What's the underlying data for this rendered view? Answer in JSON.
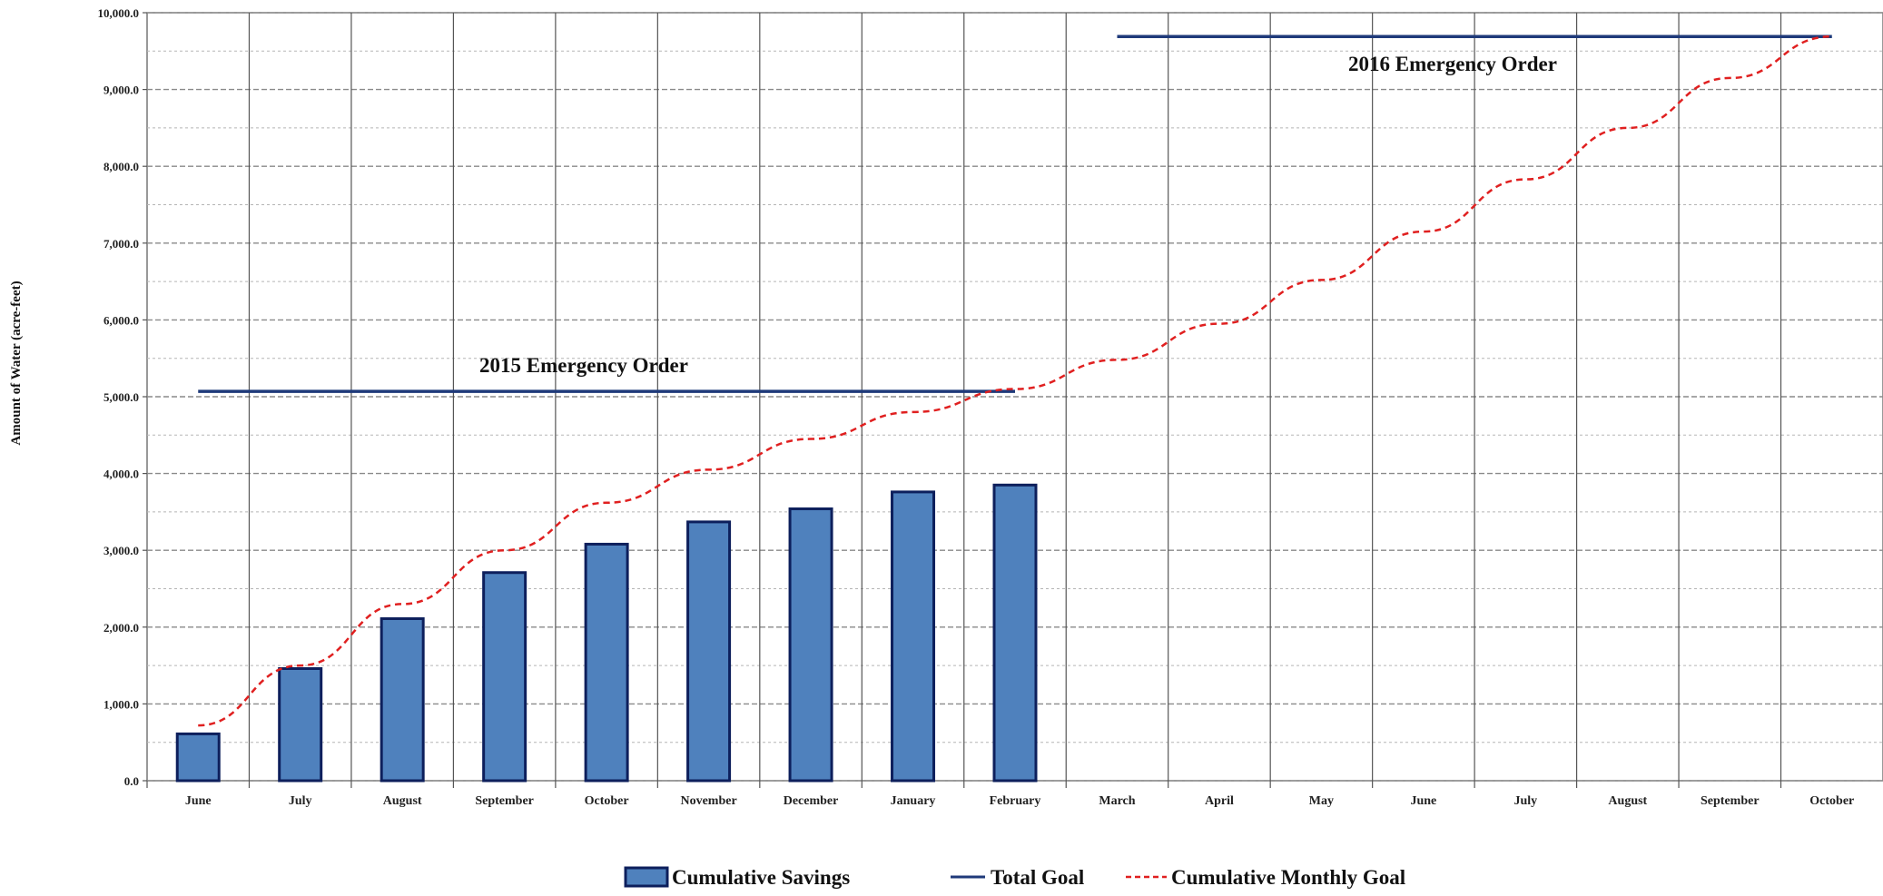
{
  "chart_data": {
    "type": "bar",
    "ylabel": "Amount of Water  (acre-feet)",
    "xlabel": "",
    "ylim": [
      0,
      10000
    ],
    "grid": true,
    "legend_position": "bottom",
    "y_tick_labels": [
      "0.0",
      "1,000.0",
      "2,000.0",
      "3,000.0",
      "4,000.0",
      "5,000.0",
      "6,000.0",
      "7,000.0",
      "8,000.0",
      "9,000.0",
      "10,000.0"
    ],
    "categories": [
      "June",
      "July",
      "August",
      "September",
      "October",
      "November",
      "December",
      "January",
      "February",
      "March",
      "April",
      "May",
      "June",
      "July",
      "August",
      "September",
      "October"
    ],
    "series": [
      {
        "name": "Cumulative Savings",
        "type": "bar",
        "color": "#4f81bd",
        "values": [
          610,
          1460,
          2110,
          2710,
          3080,
          3370,
          3540,
          3760,
          3850,
          null,
          null,
          null,
          null,
          null,
          null,
          null,
          null
        ]
      },
      {
        "name": "Total Goal",
        "type": "segments",
        "color": "#1f3a7a",
        "segments": [
          {
            "from": 0,
            "to": 8,
            "value": 5070
          },
          {
            "from": 9,
            "to": 16,
            "value": 9690
          }
        ]
      },
      {
        "name": "Cumulative Monthly Goal",
        "type": "line",
        "color": "#e02020",
        "dash": true,
        "values": [
          720,
          1500,
          2300,
          3000,
          3620,
          4050,
          4450,
          4800,
          5100,
          5480,
          5950,
          6520,
          7150,
          7830,
          8500,
          9150,
          9690
        ]
      }
    ],
    "annotations": [
      {
        "text": "2015 Emergency  Order"
      },
      {
        "text": "2016 Emergency  Order"
      }
    ]
  }
}
